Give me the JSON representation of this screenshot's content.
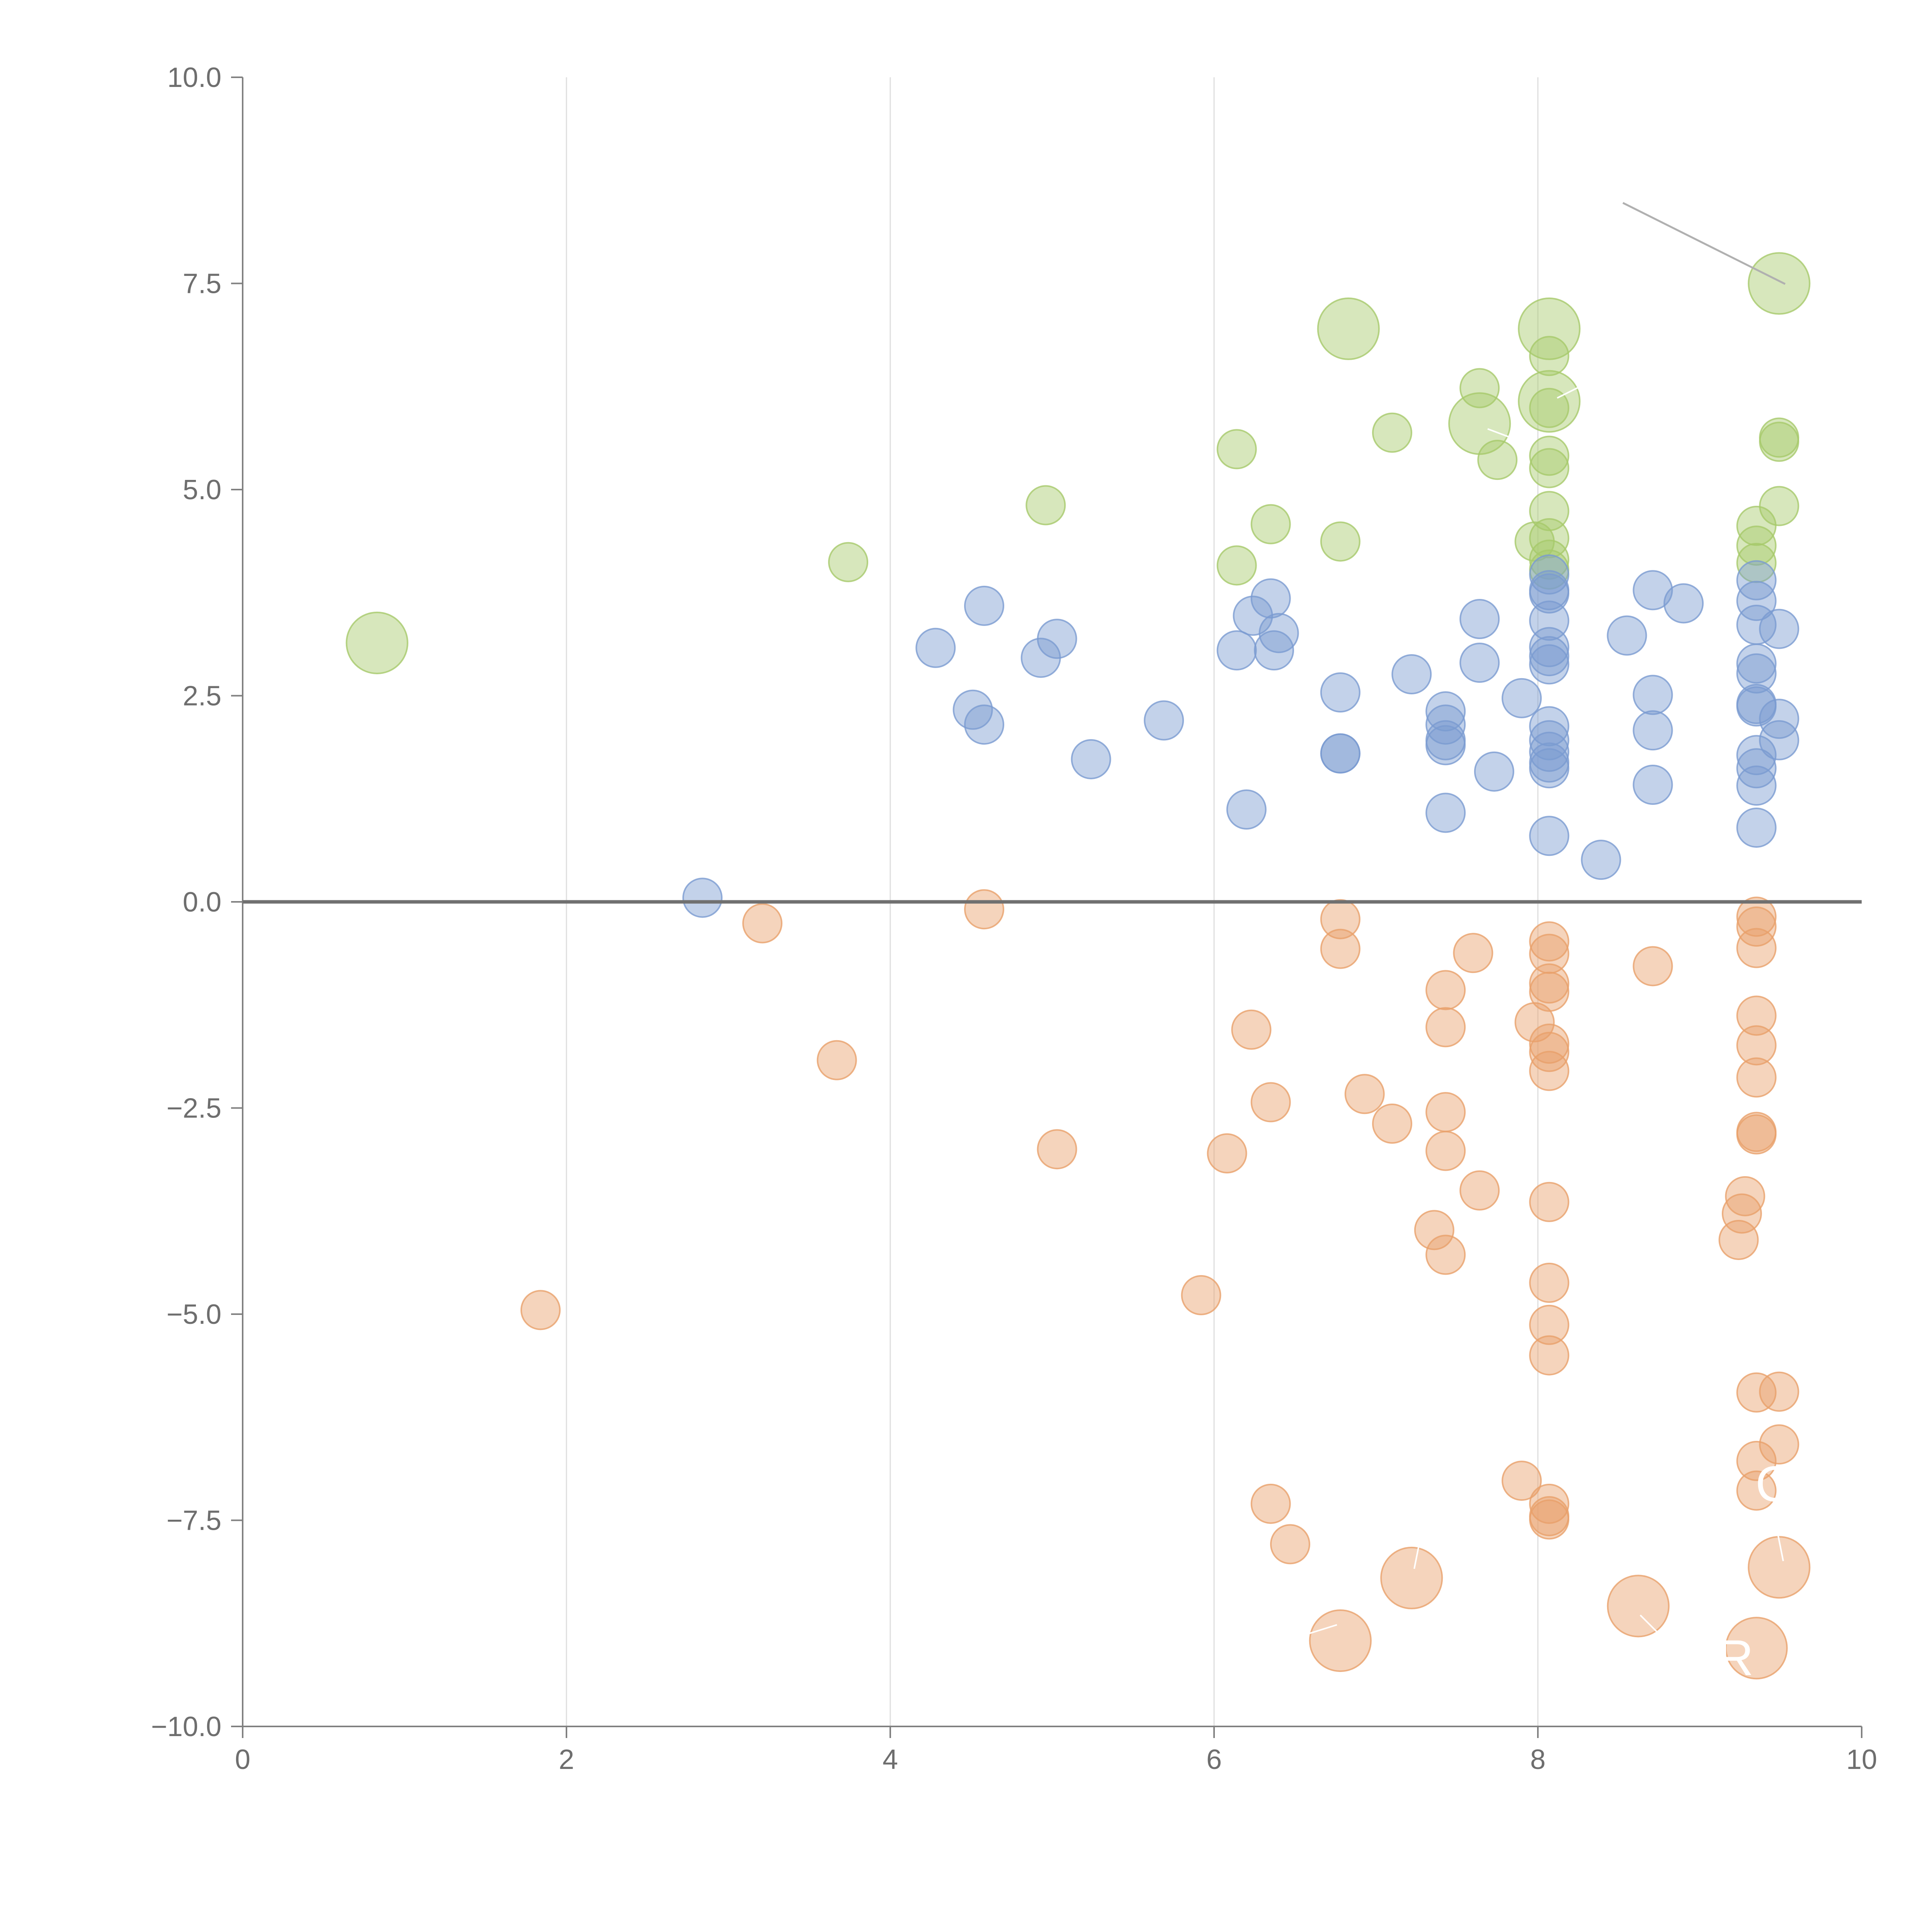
{
  "chart_data": {
    "type": "scatter",
    "title": "",
    "xlabel": "",
    "ylabel": "",
    "xlim": [
      0,
      10
    ],
    "ylim": [
      -10,
      10
    ],
    "x_ticks": [
      0,
      2,
      4,
      6,
      8,
      10
    ],
    "y_ticks": [
      -10,
      -7.5,
      -5,
      -2.5,
      0,
      2.5,
      5,
      7.5,
      10
    ],
    "x_tick_labels": [
      "0",
      "2",
      "4",
      "6",
      "8",
      "10"
    ],
    "y_tick_labels": [
      "−10.0",
      "−7.5",
      "−5.0",
      "−2.5",
      "0.0",
      "2.5",
      "5.0",
      "7.5",
      "10.0"
    ],
    "grid": "vertical",
    "zero_line": 0,
    "colors": {
      "green": "#a6c96a",
      "blue": "#7a9bd1",
      "orange": "#e8a06a",
      "axis": "#808080",
      "grid": "#dedede",
      "zero": "#707070"
    },
    "series": [
      {
        "name": "green",
        "color": "#a6c96a",
        "points": [
          [
            0.83,
            3.14,
            2.5
          ],
          [
            3.74,
            4.12,
            1
          ],
          [
            4.96,
            4.81,
            1
          ],
          [
            6.14,
            5.49,
            1
          ],
          [
            6.14,
            4.08,
            1
          ],
          [
            6.35,
            4.58,
            1
          ],
          [
            6.78,
            4.37,
            1
          ],
          [
            6.83,
            6.95,
            2.5
          ],
          [
            7.1,
            5.69,
            1
          ],
          [
            7.64,
            6.23,
            1
          ],
          [
            7.64,
            5.8,
            2.5
          ],
          [
            7.75,
            5.36,
            1
          ],
          [
            8.07,
            6.95,
            2.5
          ],
          [
            8.07,
            6.07,
            2.5
          ],
          [
            8.07,
            6.62,
            1
          ],
          [
            8.07,
            5.99,
            1
          ],
          [
            8.07,
            5.41,
            1
          ],
          [
            8.07,
            5.26,
            1
          ],
          [
            8.07,
            4.74,
            1
          ],
          [
            8.07,
            4.41,
            1
          ],
          [
            7.98,
            4.37,
            1
          ],
          [
            8.07,
            4.15,
            1
          ],
          [
            8.07,
            4.03,
            1
          ],
          [
            9.35,
            4.56,
            1
          ],
          [
            9.35,
            4.32,
            1
          ],
          [
            9.35,
            4.11,
            1
          ],
          [
            9.49,
            4.8,
            1
          ],
          [
            9.49,
            5.63,
            1
          ],
          [
            9.49,
            5.58,
            1
          ],
          [
            9.49,
            7.5,
            2.5
          ]
        ]
      },
      {
        "name": "blue",
        "color": "#7a9bd1",
        "points": [
          [
            2.84,
            0.05,
            1
          ],
          [
            4.28,
            3.08,
            1
          ],
          [
            4.51,
            2.33,
            1
          ],
          [
            4.58,
            3.59,
            1
          ],
          [
            4.58,
            2.15,
            1
          ],
          [
            4.93,
            2.96,
            1
          ],
          [
            5.03,
            3.19,
            1
          ],
          [
            5.24,
            1.73,
            1
          ],
          [
            5.69,
            2.2,
            1
          ],
          [
            6.14,
            3.05,
            1
          ],
          [
            6.2,
            1.12,
            1
          ],
          [
            6.24,
            3.47,
            1
          ],
          [
            6.35,
            3.68,
            1
          ],
          [
            6.37,
            3.05,
            1
          ],
          [
            6.4,
            3.26,
            1
          ],
          [
            6.78,
            2.54,
            1
          ],
          [
            6.78,
            1.8,
            1
          ],
          [
            6.78,
            1.8,
            1
          ],
          [
            7.22,
            2.76,
            1
          ],
          [
            7.43,
            2.31,
            1
          ],
          [
            7.43,
            2.15,
            1
          ],
          [
            7.43,
            1.96,
            1
          ],
          [
            7.43,
            1.9,
            1
          ],
          [
            7.43,
            1.08,
            1
          ],
          [
            7.64,
            3.43,
            1
          ],
          [
            7.64,
            2.9,
            1
          ],
          [
            7.73,
            1.58,
            1
          ],
          [
            7.9,
            2.47,
            1
          ],
          [
            8.07,
            3.97,
            1
          ],
          [
            8.07,
            3.78,
            1
          ],
          [
            8.07,
            3.74,
            1
          ],
          [
            8.07,
            3.41,
            1
          ],
          [
            8.07,
            3.09,
            1
          ],
          [
            8.07,
            2.98,
            1
          ],
          [
            8.07,
            2.88,
            1
          ],
          [
            8.07,
            2.13,
            1
          ],
          [
            8.07,
            1.96,
            1
          ],
          [
            8.07,
            1.82,
            1
          ],
          [
            8.07,
            1.69,
            1
          ],
          [
            8.07,
            1.62,
            1
          ],
          [
            8.07,
            0.8,
            1
          ],
          [
            8.39,
            0.51,
            1
          ],
          [
            8.55,
            3.23,
            1
          ],
          [
            8.71,
            3.78,
            1
          ],
          [
            8.71,
            2.51,
            1
          ],
          [
            8.71,
            2.08,
            1
          ],
          [
            8.71,
            1.42,
            1
          ],
          [
            8.9,
            3.62,
            1
          ],
          [
            9.35,
            3.9,
            1
          ],
          [
            9.35,
            3.65,
            1
          ],
          [
            9.35,
            3.36,
            1
          ],
          [
            9.35,
            2.89,
            1
          ],
          [
            9.35,
            2.77,
            1
          ],
          [
            9.35,
            2.4,
            1
          ],
          [
            9.35,
            2.37,
            1
          ],
          [
            9.35,
            1.78,
            1
          ],
          [
            9.35,
            1.62,
            1
          ],
          [
            9.35,
            1.41,
            1
          ],
          [
            9.35,
            0.9,
            1
          ],
          [
            9.49,
            3.31,
            1
          ],
          [
            9.49,
            2.22,
            1
          ],
          [
            9.49,
            1.96,
            1
          ]
        ]
      },
      {
        "name": "orange",
        "color": "#e8a06a",
        "points": [
          [
            1.84,
            -4.95,
            1
          ],
          [
            3.21,
            -0.26,
            1
          ],
          [
            3.67,
            -1.92,
            1
          ],
          [
            4.58,
            -0.09,
            1
          ],
          [
            5.03,
            -3.0,
            1
          ],
          [
            5.92,
            -4.77,
            1
          ],
          [
            6.08,
            -3.05,
            1
          ],
          [
            6.23,
            -1.55,
            1
          ],
          [
            6.35,
            -2.43,
            1
          ],
          [
            6.35,
            -7.3,
            1
          ],
          [
            6.47,
            -7.79,
            1
          ],
          [
            6.78,
            -0.21,
            1
          ],
          [
            6.78,
            -0.57,
            1
          ],
          [
            6.78,
            -8.96,
            2.5
          ],
          [
            6.93,
            -2.33,
            1
          ],
          [
            7.1,
            -2.69,
            1
          ],
          [
            7.22,
            -8.2,
            2.5
          ],
          [
            7.36,
            -3.98,
            1
          ],
          [
            7.43,
            -1.07,
            1
          ],
          [
            7.43,
            -1.52,
            1
          ],
          [
            7.43,
            -2.55,
            1
          ],
          [
            7.43,
            -3.02,
            1
          ],
          [
            7.43,
            -4.28,
            1
          ],
          [
            7.6,
            -0.62,
            1
          ],
          [
            7.64,
            -3.5,
            1
          ],
          [
            7.9,
            -7.02,
            1
          ],
          [
            7.98,
            -1.46,
            1
          ],
          [
            8.07,
            -0.48,
            1
          ],
          [
            8.07,
            -0.63,
            1
          ],
          [
            8.07,
            -0.99,
            1
          ],
          [
            8.07,
            -1.09,
            1
          ],
          [
            8.07,
            -1.72,
            1
          ],
          [
            8.07,
            -1.82,
            1
          ],
          [
            8.07,
            -2.05,
            1
          ],
          [
            8.07,
            -3.64,
            1
          ],
          [
            8.07,
            -4.62,
            1
          ],
          [
            8.07,
            -5.13,
            1
          ],
          [
            8.07,
            -5.5,
            1
          ],
          [
            8.07,
            -7.3,
            1
          ],
          [
            8.07,
            -7.45,
            1
          ],
          [
            8.07,
            -7.49,
            1
          ],
          [
            8.62,
            -8.54,
            2.5
          ],
          [
            8.71,
            -0.78,
            1
          ],
          [
            9.24,
            -4.1,
            1
          ],
          [
            9.26,
            -3.78,
            1
          ],
          [
            9.28,
            -3.57,
            1
          ],
          [
            9.35,
            -0.18,
            1
          ],
          [
            9.35,
            -0.3,
            1
          ],
          [
            9.35,
            -0.56,
            1
          ],
          [
            9.35,
            -1.38,
            1
          ],
          [
            9.35,
            -1.74,
            1
          ],
          [
            9.35,
            -2.13,
            1
          ],
          [
            9.35,
            -2.79,
            1
          ],
          [
            9.35,
            -2.82,
            1
          ],
          [
            9.35,
            -5.95,
            1
          ],
          [
            9.35,
            -6.78,
            1
          ],
          [
            9.35,
            -7.14,
            1
          ],
          [
            9.35,
            -9.05,
            2.5
          ],
          [
            9.49,
            -5.94,
            1
          ],
          [
            9.49,
            -6.58,
            1
          ],
          [
            9.49,
            -8.07,
            2.5
          ]
        ]
      }
    ],
    "annotations": [
      "C",
      "WR"
    ]
  }
}
